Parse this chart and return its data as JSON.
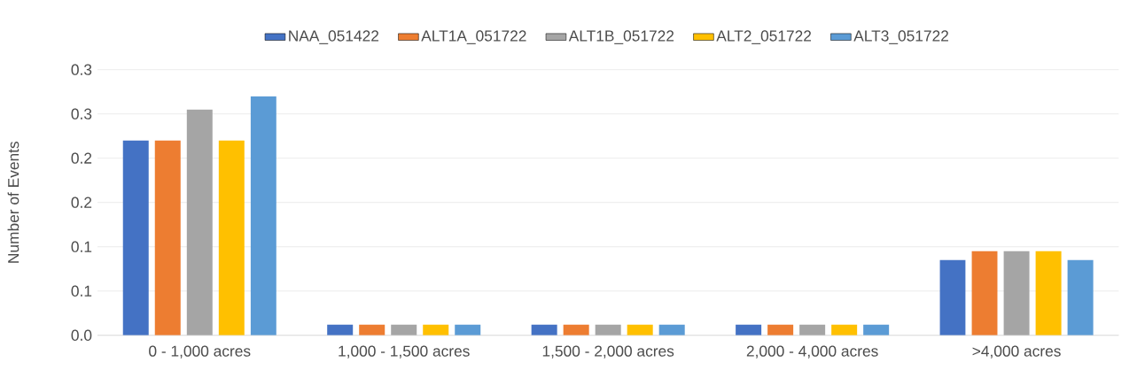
{
  "chart_data": {
    "type": "bar",
    "ylabel": "Number of Events",
    "categories": [
      "0 - 1,000 acres",
      "1,000 - 1,500 acres",
      "1,500 - 2,000 acres",
      "2,000 - 4,000 acres",
      ">4,000 acres"
    ],
    "series": [
      {
        "name": "NAA_051422",
        "color": "#4472c4",
        "values": [
          0.22,
          0.012,
          0.012,
          0.012,
          0.085
        ]
      },
      {
        "name": "ALT1A_051722",
        "color": "#ed7d31",
        "values": [
          0.22,
          0.012,
          0.012,
          0.012,
          0.095
        ]
      },
      {
        "name": "ALT1B_051722",
        "color": "#a5a5a5",
        "values": [
          0.255,
          0.012,
          0.012,
          0.012,
          0.095
        ]
      },
      {
        "name": "ALT2_051722",
        "color": "#ffc000",
        "values": [
          0.22,
          0.012,
          0.012,
          0.012,
          0.095
        ]
      },
      {
        "name": "ALT3_051722",
        "color": "#5b9bd5",
        "values": [
          0.27,
          0.012,
          0.012,
          0.012,
          0.085
        ]
      }
    ],
    "ylim": [
      0,
      0.3
    ],
    "yticks": [
      {
        "value": 0,
        "label": "0.0"
      },
      {
        "value": 0.05,
        "label": "0.1"
      },
      {
        "value": 0.1,
        "label": "0.1"
      },
      {
        "value": 0.15,
        "label": "0.2"
      },
      {
        "value": 0.2,
        "label": "0.2"
      },
      {
        "value": 0.25,
        "label": "0.3"
      },
      {
        "value": 0.3,
        "label": "0.3"
      }
    ],
    "grid": "y",
    "legend": "top"
  }
}
